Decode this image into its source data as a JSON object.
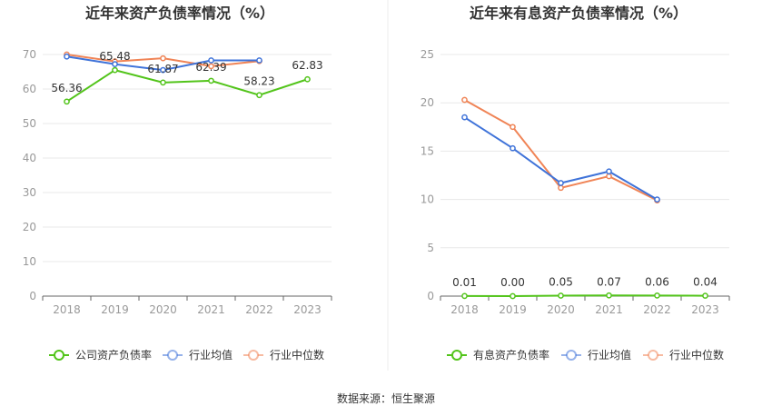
{
  "source": "数据来源：恒生聚源",
  "chart_data": [
    {
      "type": "line",
      "title": "近年来资产负债率情况（%）",
      "categories": [
        "2018",
        "2019",
        "2020",
        "2021",
        "2022",
        "2023"
      ],
      "ylim": [
        0,
        70
      ],
      "yticks": [
        "0",
        "10",
        "20",
        "30",
        "40",
        "50",
        "60",
        "70"
      ],
      "yticks_values": [
        0,
        10,
        20,
        30,
        40,
        50,
        60,
        70
      ],
      "grid": true,
      "legend_position": "bottom",
      "series": [
        {
          "name": "公司资产负债率",
          "color": "#52c41a",
          "values": [
            56.36,
            65.48,
            61.87,
            62.39,
            58.23,
            62.83
          ],
          "labels": [
            "56.36",
            "65.48",
            "61.87",
            "62.39",
            "58.23",
            "62.83"
          ]
        },
        {
          "name": "行业均值",
          "color": "#3f73d9",
          "values": [
            69.4,
            67.2,
            65.5,
            68.3,
            68.3,
            null
          ]
        },
        {
          "name": "行业中位数",
          "color": "#f08456",
          "values": [
            70.0,
            68.0,
            68.9,
            66.6,
            68.1,
            null
          ]
        }
      ]
    },
    {
      "type": "line",
      "title": "近年来有息资产负债率情况（%）",
      "categories": [
        "2018",
        "2019",
        "2020",
        "2021",
        "2022",
        "2023"
      ],
      "ylim": [
        0,
        25
      ],
      "yticks": [
        "0",
        "5",
        "10",
        "15",
        "20",
        "25"
      ],
      "yticks_values": [
        0,
        5,
        10,
        15,
        20,
        25
      ],
      "grid": true,
      "legend_position": "bottom",
      "series": [
        {
          "name": "有息资产负债率",
          "color": "#52c41a",
          "values": [
            0.01,
            0.0,
            0.05,
            0.07,
            0.06,
            0.04
          ],
          "labels": [
            "0.01",
            "0.00",
            "0.05",
            "0.07",
            "0.06",
            "0.04"
          ]
        },
        {
          "name": "行业均值",
          "color": "#3f73d9",
          "values": [
            18.5,
            15.3,
            11.7,
            12.9,
            10.0,
            null
          ]
        },
        {
          "name": "行业中位数",
          "color": "#f08456",
          "values": [
            20.3,
            17.5,
            11.2,
            12.4,
            9.9,
            null
          ]
        }
      ]
    }
  ],
  "legend_style": {
    "primary_fill": "#ffffff",
    "muted_alpha": 0.55
  }
}
